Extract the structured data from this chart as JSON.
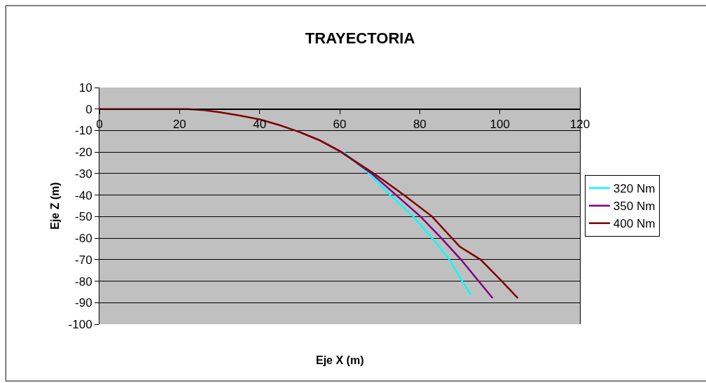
{
  "chart_data": {
    "type": "line",
    "title": "TRAYECTORIA",
    "xlabel": "Eje X (m)",
    "ylabel": "Eje Z (m)",
    "xlim": [
      0,
      120
    ],
    "xticks": [
      0,
      20,
      40,
      60,
      80,
      100,
      120
    ],
    "ylim": [
      -100,
      10
    ],
    "yticks": [
      -100,
      -90,
      -80,
      -70,
      -60,
      -50,
      -40,
      -30,
      -20,
      -10,
      0,
      10
    ],
    "grid": "y",
    "legend": "right",
    "marker": "none",
    "line_style": "solid",
    "series": [
      {
        "name": "320 Nm",
        "color": "#00ffff",
        "x": [
          61,
          67.4,
          72.6,
          78.4,
          83.1,
          87.4,
          90.6,
          92.8
        ],
        "values": [
          -20,
          -30,
          -40,
          -50,
          -60,
          -70,
          -80,
          -86.4
        ]
      },
      {
        "name": "350 Nm",
        "color": "#800080",
        "x": [
          50,
          55,
          60.5,
          68,
          74.1,
          80.2,
          85.4,
          90.3,
          94.7,
          98.2
        ],
        "values": [
          -10.7,
          -14.5,
          -20,
          -30,
          -40,
          -50,
          -60,
          -70,
          -80,
          -87.9
        ]
      },
      {
        "name": "400 Nm",
        "color": "#800000",
        "x": [
          0,
          22,
          26,
          30,
          35,
          40,
          45,
          50,
          55,
          60,
          68.6,
          76.1,
          83.1,
          90,
          95.2,
          100.5,
          104.5
        ],
        "values": [
          0,
          0,
          -0.5,
          -1.5,
          -3,
          -4.8,
          -7.5,
          -10.7,
          -14.5,
          -19.6,
          -30,
          -40,
          -50,
          -64,
          -70,
          -80,
          -87.9
        ]
      }
    ]
  }
}
